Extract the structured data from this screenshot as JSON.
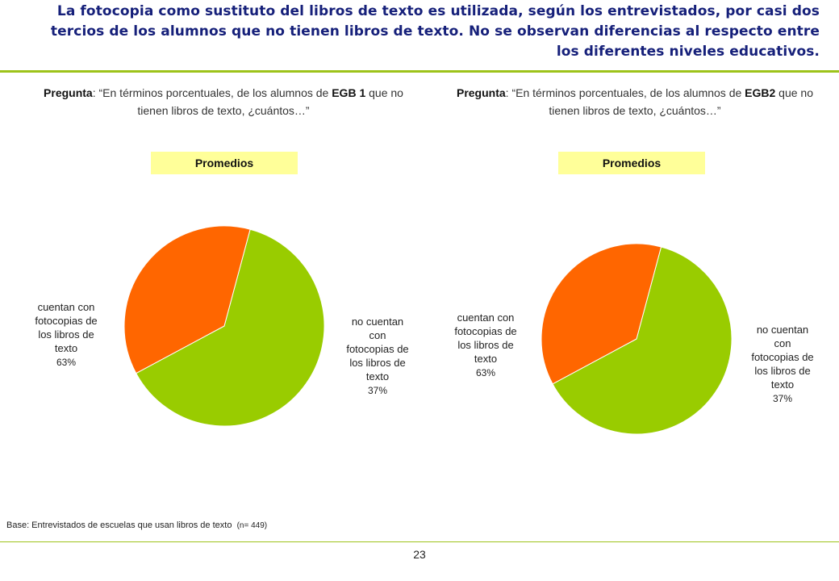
{
  "title": "La fotocopia como sustituto del libros de texto es utilizada, según los entrevistados, por casi dos tercios de los alumnos que no tienen libros de texto. No se observan diferencias al respecto entre los diferentes niveles educativos.",
  "colors": {
    "green": "#99cc00",
    "orange": "#ff6600",
    "title": "#16207a",
    "rule": "#9dc31a",
    "badge": "#ffff99"
  },
  "left": {
    "question_label": "Pregunta",
    "question_pre": ": “En términos porcentuales, de los alumnos de ",
    "question_level": "EGB 1",
    "question_post": " que no tienen libros de texto, ¿cuántos…”",
    "badge": "Promedios"
  },
  "right": {
    "question_label": "Pregunta",
    "question_pre": ": “En términos porcentuales, de los alumnos de ",
    "question_level": "EGB2",
    "question_post": " que no tienen libros de texto, ¿cuántos…”",
    "badge": "Promedios"
  },
  "chart_data": [
    {
      "type": "pie",
      "title": "",
      "slices": [
        {
          "label": [
            "cuentan con",
            "fotocopias de",
            "los libros de",
            "texto"
          ],
          "pct_label": "63%",
          "value": 63,
          "color": "#99cc00"
        },
        {
          "label": [
            "no cuentan",
            "con",
            "fotocopias de",
            "los libros de",
            "texto"
          ],
          "pct_label": "37%",
          "value": 37,
          "color": "#ff6600"
        }
      ]
    },
    {
      "type": "pie",
      "title": "",
      "slices": [
        {
          "label": [
            "cuentan con",
            "fotocopias de",
            "los libros de",
            "texto"
          ],
          "pct_label": "63%",
          "value": 63,
          "color": "#99cc00"
        },
        {
          "label": [
            "no cuentan",
            "con",
            "fotocopias de",
            "los libros de",
            "texto"
          ],
          "pct_label": "37%",
          "value": 37,
          "color": "#ff6600"
        }
      ]
    }
  ],
  "base": {
    "text": "Base: Entrevistados de escuelas que usan libros de texto",
    "n": "(n= 449)"
  },
  "page_number": "23"
}
